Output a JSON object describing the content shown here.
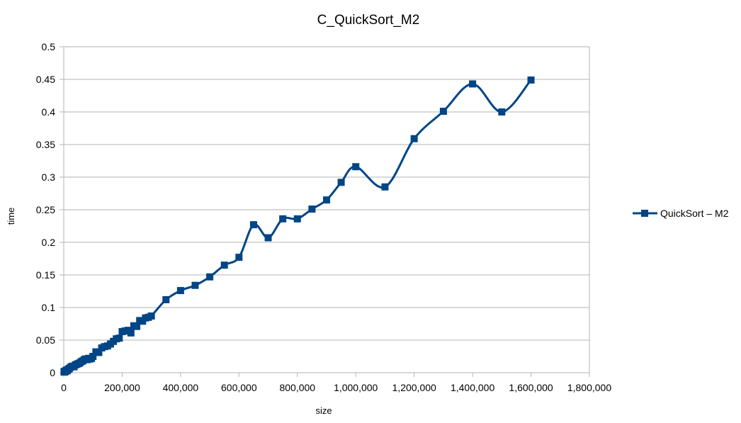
{
  "chart_data": {
    "type": "line",
    "title": "C_QuickSort_M2",
    "xlabel": "size",
    "ylabel": "time",
    "xlim": [
      0,
      1800000
    ],
    "ylim": [
      0,
      0.5
    ],
    "x_ticks": [
      0,
      200000,
      400000,
      600000,
      800000,
      1000000,
      1200000,
      1400000,
      1600000,
      1800000
    ],
    "x_tick_labels": [
      "0",
      "200,000",
      "400,000",
      "600,000",
      "800,000",
      "1,000,000",
      "1,200,000",
      "1,400,000",
      "1,600,000",
      "1,800,000"
    ],
    "y_ticks": [
      0,
      0.05,
      0.1,
      0.15,
      0.2,
      0.25,
      0.3,
      0.35,
      0.4,
      0.45,
      0.5
    ],
    "y_tick_labels": [
      "0",
      "0.05",
      "0.1",
      "0.15",
      "0.2",
      "0.25",
      "0.3",
      "0.35",
      "0.4",
      "0.45",
      "0.5"
    ],
    "grid": "horizontal",
    "legend": "right",
    "series_color": "#004586",
    "series": [
      {
        "name": "QuickSort – M2",
        "x": [
          1000,
          2000,
          3000,
          5000,
          7000,
          10000,
          12000,
          15000,
          18000,
          20000,
          25000,
          30000,
          35000,
          40000,
          45000,
          50000,
          55000,
          60000,
          65000,
          70000,
          75000,
          80000,
          85000,
          90000,
          95000,
          100000,
          110000,
          120000,
          130000,
          140000,
          150000,
          160000,
          170000,
          180000,
          190000,
          200000,
          210000,
          220000,
          230000,
          240000,
          250000,
          260000,
          270000,
          280000,
          290000,
          300000,
          350000,
          400000,
          450000,
          500000,
          550000,
          600000,
          650000,
          700000,
          750000,
          800000,
          850000,
          900000,
          950000,
          1000000,
          1100000,
          1200000,
          1300000,
          1400000,
          1500000,
          1600000
        ],
        "y": [
          0.001,
          0.002,
          0.001,
          0.002,
          0.003,
          0.004,
          0.003,
          0.005,
          0.006,
          0.007,
          0.009,
          0.01,
          0.009,
          0.012,
          0.013,
          0.014,
          0.015,
          0.017,
          0.018,
          0.02,
          0.021,
          0.02,
          0.022,
          0.021,
          0.022,
          0.025,
          0.032,
          0.031,
          0.038,
          0.04,
          0.041,
          0.044,
          0.048,
          0.052,
          0.053,
          0.063,
          0.064,
          0.065,
          0.061,
          0.072,
          0.071,
          0.08,
          0.079,
          0.084,
          0.085,
          0.087,
          0.112,
          0.126,
          0.134,
          0.147,
          0.165,
          0.177,
          0.227,
          0.207,
          0.236,
          0.236,
          0.251,
          0.265,
          0.292,
          0.316,
          0.285,
          0.359,
          0.401,
          0.443,
          0.4,
          0.449
        ]
      }
    ]
  }
}
